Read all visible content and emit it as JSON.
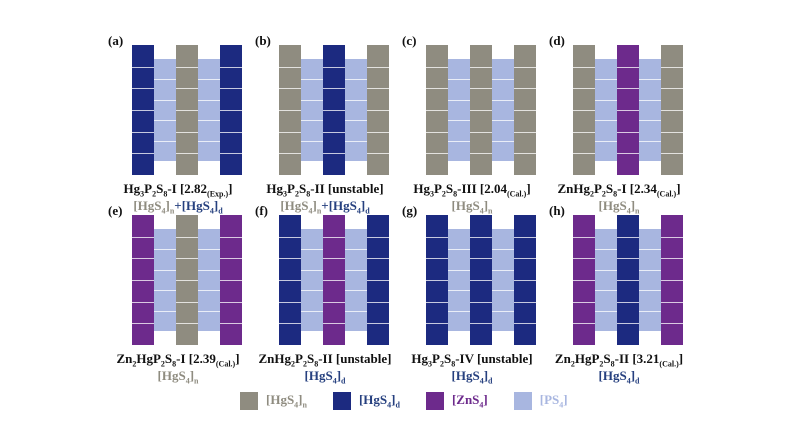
{
  "colors": {
    "n": "#8f8c80",
    "d": "#1c2a80",
    "zn": "#6d2a8c",
    "ps": "#a8b6e0"
  },
  "panels": [
    {
      "label": "(a)",
      "cols": [
        "d",
        "ps",
        "n",
        "ps",
        "d"
      ],
      "cap_main": "Hg",
      "cap_s1": "3",
      "cap_m2": "P",
      "cap_s2": "2",
      "cap_m3": "S",
      "cap_s3": "8",
      "cap_tail": "-I [2.82",
      "cap_tsub": "(Exp.)",
      "cap_end": "]",
      "sub_parts": [
        {
          "t": "[HgS",
          "c": "n"
        },
        {
          "t": "4",
          "c": "n",
          "sub": true
        },
        {
          "t": "]",
          "c": "n"
        },
        {
          "t": "n",
          "c": "n",
          "sub": true
        },
        {
          "t": "+",
          "c": "plus"
        },
        {
          "t": "[HgS",
          "c": "d"
        },
        {
          "t": "4",
          "c": "d",
          "sub": true
        },
        {
          "t": "]",
          "c": "d"
        },
        {
          "t": "d",
          "c": "d",
          "sub": true
        }
      ]
    },
    {
      "label": "(b)",
      "cols": [
        "n",
        "ps",
        "d",
        "ps",
        "n"
      ],
      "cap_main": "Hg",
      "cap_s1": "3",
      "cap_m2": "P",
      "cap_s2": "2",
      "cap_m3": "S",
      "cap_s3": "8",
      "cap_tail": "-II [unstable]",
      "cap_tsub": "",
      "cap_end": "",
      "sub_parts": [
        {
          "t": "[HgS",
          "c": "n"
        },
        {
          "t": "4",
          "c": "n",
          "sub": true
        },
        {
          "t": "]",
          "c": "n"
        },
        {
          "t": "n",
          "c": "n",
          "sub": true
        },
        {
          "t": "+",
          "c": "plus"
        },
        {
          "t": "[HgS",
          "c": "d"
        },
        {
          "t": "4",
          "c": "d",
          "sub": true
        },
        {
          "t": "]",
          "c": "d"
        },
        {
          "t": "d",
          "c": "d",
          "sub": true
        }
      ]
    },
    {
      "label": "(c)",
      "cols": [
        "n",
        "ps",
        "n",
        "ps",
        "n"
      ],
      "cap_main": "Hg",
      "cap_s1": "3",
      "cap_m2": "P",
      "cap_s2": "2",
      "cap_m3": "S",
      "cap_s3": "8",
      "cap_tail": "-III [2.04",
      "cap_tsub": "(Cal.)",
      "cap_end": "]",
      "sub_parts": [
        {
          "t": "[HgS",
          "c": "n"
        },
        {
          "t": "4",
          "c": "n",
          "sub": true
        },
        {
          "t": "]",
          "c": "n"
        },
        {
          "t": "n",
          "c": "n",
          "sub": true
        }
      ]
    },
    {
      "label": "(d)",
      "cols": [
        "n",
        "ps",
        "zn",
        "ps",
        "n"
      ],
      "cap_main": "ZnHg",
      "cap_s1": "2",
      "cap_m2": "P",
      "cap_s2": "2",
      "cap_m3": "S",
      "cap_s3": "8",
      "cap_tail": "-I [2.34",
      "cap_tsub": "(Cal.)",
      "cap_end": "]",
      "sub_parts": [
        {
          "t": "[HgS",
          "c": "n"
        },
        {
          "t": "4",
          "c": "n",
          "sub": true
        },
        {
          "t": "]",
          "c": "n"
        },
        {
          "t": "n",
          "c": "n",
          "sub": true
        }
      ]
    },
    {
      "label": "(e)",
      "cols": [
        "zn",
        "ps",
        "n",
        "ps",
        "zn"
      ],
      "cap_main": "Zn",
      "cap_s1": "2",
      "cap_m2": "HgP",
      "cap_s2": "2",
      "cap_m3": "S",
      "cap_s3": "8",
      "cap_tail": "-I [2.39",
      "cap_tsub": "(Cal.)",
      "cap_end": "]",
      "sub_parts": [
        {
          "t": "[HgS",
          "c": "n"
        },
        {
          "t": "4",
          "c": "n",
          "sub": true
        },
        {
          "t": "]",
          "c": "n"
        },
        {
          "t": "n",
          "c": "n",
          "sub": true
        }
      ]
    },
    {
      "label": "(f)",
      "cols": [
        "d",
        "ps",
        "zn",
        "ps",
        "d"
      ],
      "cap_main": "ZnHg",
      "cap_s1": "2",
      "cap_m2": "P",
      "cap_s2": "2",
      "cap_m3": "S",
      "cap_s3": "8",
      "cap_tail": "-II [unstable]",
      "cap_tsub": "",
      "cap_end": "",
      "sub_parts": [
        {
          "t": "[HgS",
          "c": "d"
        },
        {
          "t": "4",
          "c": "d",
          "sub": true
        },
        {
          "t": "]",
          "c": "d"
        },
        {
          "t": "d",
          "c": "d",
          "sub": true
        }
      ]
    },
    {
      "label": "(g)",
      "cols": [
        "d",
        "ps",
        "d",
        "ps",
        "d"
      ],
      "cap_main": "Hg",
      "cap_s1": "3",
      "cap_m2": "P",
      "cap_s2": "2",
      "cap_m3": "S",
      "cap_s3": "8",
      "cap_tail": "-IV [unstable]",
      "cap_tsub": "",
      "cap_end": "",
      "sub_parts": [
        {
          "t": "[HgS",
          "c": "d"
        },
        {
          "t": "4",
          "c": "d",
          "sub": true
        },
        {
          "t": "]",
          "c": "d"
        },
        {
          "t": "d",
          "c": "d",
          "sub": true
        }
      ]
    },
    {
      "label": "(h)",
      "cols": [
        "zn",
        "ps",
        "d",
        "ps",
        "zn"
      ],
      "cap_main": "Zn",
      "cap_s1": "2",
      "cap_m2": "HgP",
      "cap_s2": "2",
      "cap_m3": "S",
      "cap_s3": "8",
      "cap_tail": "-II [3.21",
      "cap_tsub": "(Cal.)",
      "cap_end": "]",
      "sub_parts": [
        {
          "t": "[HgS",
          "c": "d"
        },
        {
          "t": "4",
          "c": "d",
          "sub": true
        },
        {
          "t": "]",
          "c": "d"
        },
        {
          "t": "d",
          "c": "d",
          "sub": true
        }
      ]
    }
  ],
  "legend": [
    {
      "key": "n",
      "parts": [
        {
          "t": "[HgS"
        },
        {
          "t": "4",
          "sub": true
        },
        {
          "t": "]"
        },
        {
          "t": "n",
          "sub": true
        }
      ],
      "text_color": "#8f8c80"
    },
    {
      "key": "d",
      "parts": [
        {
          "t": "[HgS"
        },
        {
          "t": "4",
          "sub": true
        },
        {
          "t": "]"
        },
        {
          "t": "d",
          "sub": true
        }
      ],
      "text_color": "#26407f"
    },
    {
      "key": "zn",
      "parts": [
        {
          "t": "[ZnS"
        },
        {
          "t": "4",
          "sub": true
        },
        {
          "t": "]"
        }
      ],
      "text_color": "#6d2a8c"
    },
    {
      "key": "ps",
      "parts": [
        {
          "t": "[PS"
        },
        {
          "t": "4",
          "sub": true
        },
        {
          "t": "]"
        }
      ],
      "text_color": "#a8b6e0"
    }
  ]
}
